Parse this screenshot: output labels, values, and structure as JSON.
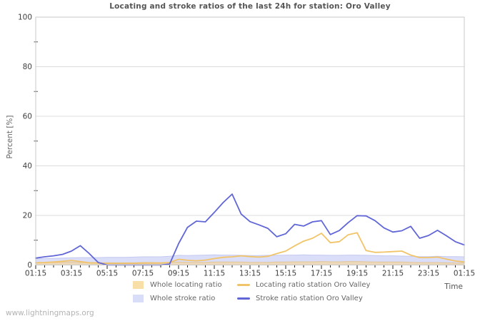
{
  "title": "Locating and stroke ratios of the last 24h for station: Oro Valley",
  "watermark": "www.lightningmaps.org",
  "axes": {
    "y_label": "Percent  [%]",
    "x_label": "Time",
    "y_ticks": [
      0,
      20,
      40,
      60,
      80,
      100
    ],
    "y_minor_ticks": [
      10,
      30,
      50,
      70,
      90
    ],
    "x_major_tick_labels": [
      "01:15",
      "03:15",
      "05:15",
      "07:15",
      "09:15",
      "11:15",
      "13:15",
      "15:15",
      "17:15",
      "19:15",
      "21:15",
      "23:15",
      "01:15"
    ]
  },
  "colors": {
    "whole_locating_fill": "#f8dfa8",
    "whole_stroke_fill": "#d9ddf8",
    "locating_line": "#f2c469",
    "stroke_line": "#6066d6",
    "grid": "#dcdcdc",
    "plot_border": "#c9c9c9",
    "tick": "#222222",
    "tick_label": "#3f3f3f"
  },
  "legend": [
    {
      "label": "Whole locating ratio",
      "kind": "area",
      "color": "#f8dfa8"
    },
    {
      "label": "Locating ratio station Oro Valley",
      "kind": "line",
      "color": "#f2c469"
    },
    {
      "label": "Whole stroke ratio",
      "kind": "area",
      "color": "#d9ddf8"
    },
    {
      "label": "Stroke ratio station Oro Valley",
      "kind": "line",
      "color": "#6066d6"
    }
  ],
  "chart_data": {
    "type": "line",
    "title": "Locating and stroke ratios of the last 24h for station: Oro Valley",
    "xlabel": "Time",
    "ylabel": "Percent  [%]",
    "ylim": [
      0,
      100
    ],
    "grid": "horizontal-only",
    "legend_position": "bottom",
    "x": [
      "01:15",
      "01:45",
      "02:15",
      "02:45",
      "03:15",
      "03:45",
      "04:15",
      "04:45",
      "05:15",
      "05:45",
      "06:15",
      "06:45",
      "07:15",
      "07:45",
      "08:15",
      "08:45",
      "09:15",
      "09:45",
      "10:15",
      "10:45",
      "11:15",
      "11:45",
      "12:15",
      "12:45",
      "13:15",
      "13:45",
      "14:15",
      "14:45",
      "15:15",
      "15:45",
      "16:15",
      "16:45",
      "17:15",
      "17:45",
      "18:15",
      "18:45",
      "19:15",
      "19:45",
      "20:15",
      "20:45",
      "21:15",
      "21:45",
      "22:15",
      "22:45",
      "23:15",
      "23:45",
      "00:15",
      "00:45",
      "01:15"
    ],
    "series": [
      {
        "name": "Whole stroke ratio",
        "kind": "area",
        "color": "#dbdef8",
        "edge": "#c4c9f0",
        "values": [
          2.5,
          2.6,
          2.7,
          2.8,
          2.9,
          3.0,
          3.0,
          3.0,
          3.1,
          3.1,
          3.1,
          3.2,
          3.3,
          3.3,
          3.3,
          3.5,
          3.9,
          3.8,
          3.9,
          4.0,
          4.1,
          4.0,
          4.0,
          3.9,
          3.8,
          3.8,
          3.9,
          3.9,
          4.0,
          4.0,
          4.1,
          4.0,
          4.0,
          3.9,
          3.9,
          4.0,
          4.0,
          3.9,
          3.8,
          3.7,
          3.7,
          3.6,
          3.5,
          3.4,
          3.4,
          3.5,
          3.4,
          3.4,
          3.3
        ]
      },
      {
        "name": "Whole locating ratio",
        "kind": "area",
        "color": "rgba(247,215,152,0.62)",
        "edge": "rgba(226,186,120,0.65)",
        "values": [
          1.0,
          1.0,
          1.0,
          1.1,
          1.1,
          1.0,
          0.9,
          0.9,
          0.9,
          0.9,
          0.9,
          0.9,
          1.0,
          1.0,
          0.9,
          1.0,
          1.2,
          1.1,
          1.1,
          1.1,
          1.2,
          1.2,
          1.2,
          1.2,
          1.1,
          1.1,
          1.1,
          1.2,
          1.2,
          1.3,
          1.3,
          1.3,
          1.4,
          1.3,
          1.3,
          1.4,
          1.4,
          1.3,
          1.2,
          1.2,
          1.2,
          1.2,
          1.1,
          1.0,
          1.0,
          1.0,
          0.9,
          0.8,
          0.8
        ]
      },
      {
        "name": "Locating ratio station Oro Valley",
        "kind": "line",
        "color": "#f2c469",
        "values": [
          0.9,
          1.0,
          1.2,
          1.5,
          1.8,
          1.4,
          0.9,
          0.8,
          0.7,
          0.7,
          0.7,
          0.7,
          0.8,
          0.8,
          0.8,
          1.0,
          2.3,
          1.9,
          1.7,
          2.0,
          2.6,
          3.1,
          3.3,
          3.7,
          3.4,
          3.2,
          3.5,
          4.6,
          5.6,
          7.7,
          9.6,
          10.8,
          12.8,
          9.0,
          9.4,
          12.2,
          13.0,
          5.8,
          5.1,
          5.2,
          5.4,
          5.6,
          4.0,
          3.0,
          3.0,
          3.2,
          2.4,
          1.6,
          1.2
        ]
      },
      {
        "name": "Stroke ratio station Oro Valley",
        "kind": "line",
        "color": "#6066d6",
        "values": [
          2.8,
          3.3,
          3.7,
          4.3,
          5.6,
          7.8,
          4.6,
          1.0,
          0,
          0,
          0,
          0,
          0,
          0,
          0,
          0.4,
          8.6,
          15.2,
          17.7,
          17.4,
          21.2,
          25.2,
          28.6,
          20.6,
          17.5,
          16.2,
          14.8,
          11.4,
          12.6,
          16.4,
          15.7,
          17.4,
          17.9,
          12.3,
          13.9,
          17.1,
          19.9,
          19.8,
          17.9,
          15.0,
          13.3,
          13.8,
          15.6,
          10.8,
          11.9,
          14.0,
          11.8,
          9.4,
          8.1
        ]
      }
    ]
  }
}
